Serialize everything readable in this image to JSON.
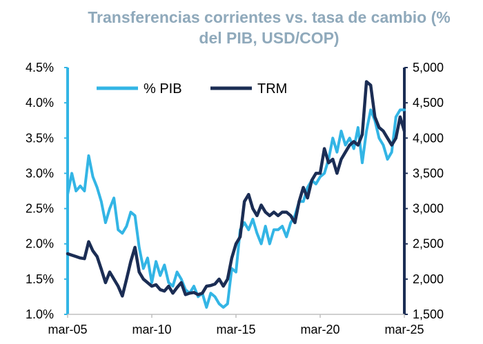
{
  "chart_data": {
    "type": "line",
    "title_bold": "Transferencias corrientes vs. tasa de cambio",
    "title_rest": "(% del PIB, USD/COP)",
    "x_tick_labels": [
      "mar-05",
      "mar-10",
      "mar-15",
      "mar-20",
      "mar-25"
    ],
    "x_range": [
      2005.0,
      2025.0
    ],
    "y_left": {
      "range": [
        1.0,
        4.5
      ],
      "ticks": [
        "1.0%",
        "1.5%",
        "2.0%",
        "2.5%",
        "3.0%",
        "3.5%",
        "4.0%",
        "4.5%"
      ]
    },
    "y_right": {
      "range": [
        1500,
        5000
      ],
      "ticks": [
        "1,500",
        "2,000",
        "2,500",
        "3,000",
        "3,500",
        "4,000",
        "4,500",
        "5,000"
      ]
    },
    "legend_position": "top-left",
    "grid": false,
    "series": [
      {
        "name": "% PIB",
        "axis": "left",
        "color": "#33b5e5",
        "x": [
          2005.0,
          2005.25,
          2005.5,
          2005.75,
          2006.0,
          2006.25,
          2006.5,
          2006.75,
          2007.0,
          2007.25,
          2007.5,
          2007.75,
          2008.0,
          2008.25,
          2008.5,
          2008.75,
          2009.0,
          2009.25,
          2009.5,
          2009.75,
          2010.0,
          2010.25,
          2010.5,
          2010.75,
          2011.0,
          2011.25,
          2011.5,
          2011.75,
          2012.0,
          2012.25,
          2012.5,
          2012.75,
          2013.0,
          2013.25,
          2013.5,
          2013.75,
          2014.0,
          2014.25,
          2014.5,
          2014.75,
          2015.0,
          2015.25,
          2015.5,
          2015.75,
          2016.0,
          2016.25,
          2016.5,
          2016.75,
          2017.0,
          2017.25,
          2017.5,
          2017.75,
          2018.0,
          2018.25,
          2018.5,
          2018.75,
          2019.0,
          2019.25,
          2019.5,
          2019.75,
          2020.0,
          2020.25,
          2020.5,
          2020.75,
          2021.0,
          2021.25,
          2021.5,
          2021.75,
          2022.0,
          2022.25,
          2022.5,
          2022.75,
          2023.0,
          2023.25,
          2023.5,
          2023.75,
          2024.0,
          2024.25,
          2024.5,
          2024.75,
          2025.0
        ],
        "values": [
          2.7,
          3.0,
          2.75,
          2.82,
          2.75,
          3.25,
          2.95,
          2.8,
          2.6,
          2.3,
          2.5,
          2.65,
          2.2,
          2.15,
          2.25,
          2.45,
          2.4,
          1.95,
          1.65,
          1.8,
          1.45,
          1.75,
          1.55,
          1.7,
          1.45,
          1.4,
          1.6,
          1.5,
          1.35,
          1.3,
          1.4,
          1.25,
          1.3,
          1.1,
          1.3,
          1.25,
          1.15,
          1.1,
          1.15,
          1.65,
          1.6,
          2.2,
          2.3,
          2.2,
          2.35,
          2.15,
          2.0,
          2.25,
          2.0,
          2.2,
          2.2,
          2.25,
          2.1,
          2.3,
          2.4,
          2.6,
          2.6,
          2.8,
          2.9,
          2.85,
          2.95,
          3.0,
          3.2,
          3.5,
          3.3,
          3.6,
          3.4,
          3.5,
          3.35,
          3.65,
          3.15,
          3.6,
          3.9,
          3.75,
          3.5,
          3.4,
          3.2,
          3.3,
          3.8,
          3.9,
          3.9
        ]
      },
      {
        "name": "TRM",
        "axis": "right",
        "color": "#1b2d54",
        "x": [
          2005.0,
          2005.25,
          2005.5,
          2005.75,
          2006.0,
          2006.25,
          2006.5,
          2006.75,
          2007.0,
          2007.25,
          2007.5,
          2007.75,
          2008.0,
          2008.25,
          2008.5,
          2008.75,
          2009.0,
          2009.25,
          2009.5,
          2009.75,
          2010.0,
          2010.25,
          2010.5,
          2010.75,
          2011.0,
          2011.25,
          2011.5,
          2011.75,
          2012.0,
          2012.25,
          2012.5,
          2012.75,
          2013.0,
          2013.25,
          2013.5,
          2013.75,
          2014.0,
          2014.25,
          2014.5,
          2014.75,
          2015.0,
          2015.25,
          2015.5,
          2015.75,
          2016.0,
          2016.25,
          2016.5,
          2016.75,
          2017.0,
          2017.25,
          2017.5,
          2017.75,
          2018.0,
          2018.25,
          2018.5,
          2018.75,
          2019.0,
          2019.25,
          2019.5,
          2019.75,
          2020.0,
          2020.25,
          2020.5,
          2020.75,
          2021.0,
          2021.25,
          2021.5,
          2021.75,
          2022.0,
          2022.25,
          2022.5,
          2022.75,
          2023.0,
          2023.25,
          2023.5,
          2023.75,
          2024.0,
          2024.25,
          2024.5,
          2024.75,
          2025.0
        ],
        "values": [
          2360,
          2340,
          2320,
          2300,
          2290,
          2530,
          2400,
          2320,
          2140,
          1950,
          2100,
          2000,
          1900,
          1760,
          2000,
          2250,
          2450,
          2100,
          2000,
          1950,
          1900,
          1920,
          1850,
          1830,
          1900,
          1800,
          1880,
          1950,
          1780,
          1800,
          1810,
          1780,
          1800,
          1900,
          1910,
          1930,
          2000,
          1900,
          2000,
          2300,
          2500,
          2600,
          3100,
          3200,
          3000,
          2900,
          3050,
          2950,
          2900,
          2950,
          2900,
          2950,
          2950,
          2900,
          2800,
          3100,
          3300,
          3150,
          3400,
          3500,
          3500,
          3850,
          3650,
          3700,
          3500,
          3700,
          3800,
          3900,
          3950,
          3900,
          4050,
          4800,
          4750,
          4300,
          4150,
          4100,
          4000,
          3900,
          4000,
          4300,
          4100
        ]
      }
    ]
  }
}
